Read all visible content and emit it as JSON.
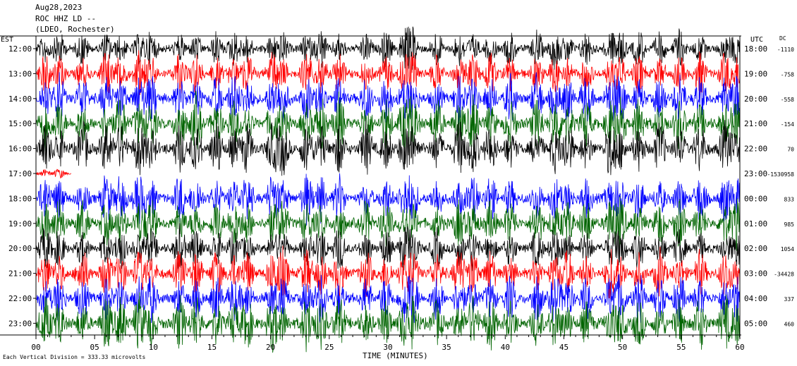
{
  "header": {
    "date": "Aug28,2023",
    "station": "ROC HHZ LD --",
    "network": "(LDEO, Rochester)"
  },
  "axes": {
    "left_zone": "EST",
    "right_zone": "UTC",
    "dc_heading": "DC",
    "xlabel": "TIME (MINUTES)",
    "scale_note": "Each Vertical Division = 333.33 microvolts"
  },
  "chart_data": {
    "type": "line",
    "title": "Aug28,2023 ROC HHZ LD -- (LDEO, Rochester)",
    "xlabel": "TIME (MINUTES)",
    "xlim": [
      0,
      60
    ],
    "x_ticks": [
      "00",
      "05",
      "10",
      "15",
      "20",
      "25",
      "30",
      "35",
      "40",
      "45",
      "50",
      "55",
      "60"
    ],
    "trace_colors": [
      "#000000",
      "#ff0000",
      "#0000ff",
      "#006400"
    ],
    "traces": [
      {
        "est": "12:00",
        "utc": "18:00",
        "dc": "-1110",
        "color": "#000000",
        "amplitude": 0.7
      },
      {
        "est": "13:00",
        "utc": "19:00",
        "dc": "-758",
        "color": "#ff0000",
        "amplitude": 0.8
      },
      {
        "est": "14:00",
        "utc": "20:00",
        "dc": "-558",
        "color": "#0000ff",
        "amplitude": 0.9
      },
      {
        "est": "15:00",
        "utc": "21:00",
        "dc": "-154",
        "color": "#006400",
        "amplitude": 1.0
      },
      {
        "est": "16:00",
        "utc": "22:00",
        "dc": "70",
        "color": "#000000",
        "amplitude": 1.0
      },
      {
        "est": "17:00",
        "utc": "23:00",
        "dc": "-1530958",
        "color": "#ff0000",
        "amplitude": 0.2,
        "partial_until_min": 3
      },
      {
        "est": "18:00",
        "utc": "00:00",
        "dc": "833",
        "color": "#0000ff",
        "amplitude": 0.9
      },
      {
        "est": "19:00",
        "utc": "01:00",
        "dc": "985",
        "color": "#006400",
        "amplitude": 0.9
      },
      {
        "est": "20:00",
        "utc": "02:00",
        "dc": "1054",
        "color": "#000000",
        "amplitude": 0.8
      },
      {
        "est": "21:00",
        "utc": "03:00",
        "dc": "-34428",
        "color": "#ff0000",
        "amplitude": 0.9
      },
      {
        "est": "22:00",
        "utc": "04:00",
        "dc": "337",
        "color": "#0000ff",
        "amplitude": 0.9
      },
      {
        "est": "23:00",
        "utc": "05:00",
        "dc": "460",
        "color": "#006400",
        "amplitude": 1.0
      }
    ]
  }
}
